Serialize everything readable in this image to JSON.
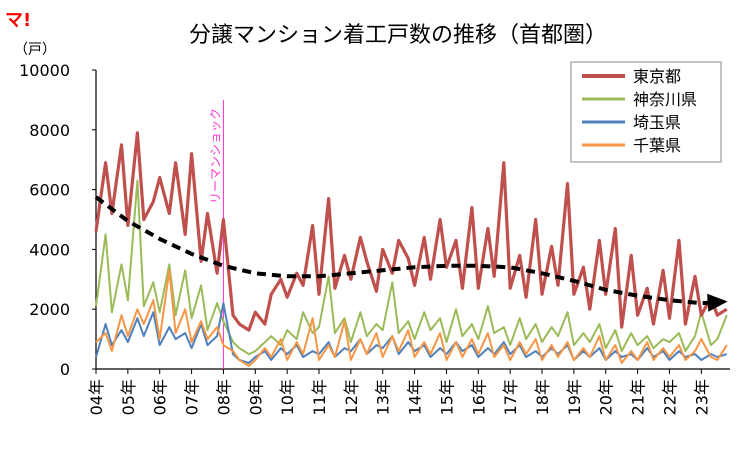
{
  "logo": "マ!",
  "chart_data": {
    "type": "line",
    "title": "分譲マンション着工戸数の推移（首都圏）",
    "ylabel": "（戸）",
    "ylim": [
      0,
      10000
    ],
    "yticks": [
      0,
      2000,
      4000,
      6000,
      8000,
      10000
    ],
    "xlim": [
      2004.0,
      2023.9
    ],
    "xticks": [
      {
        "x": 2004,
        "label": "04年"
      },
      {
        "x": 2005,
        "label": "05年"
      },
      {
        "x": 2006,
        "label": "06年"
      },
      {
        "x": 2007,
        "label": "07年"
      },
      {
        "x": 2008,
        "label": "08年"
      },
      {
        "x": 2009,
        "label": "09年"
      },
      {
        "x": 2010,
        "label": "10年"
      },
      {
        "x": 2011,
        "label": "11年"
      },
      {
        "x": 2012,
        "label": "12年"
      },
      {
        "x": 2013,
        "label": "13年"
      },
      {
        "x": 2014,
        "label": "14年"
      },
      {
        "x": 2015,
        "label": "15年"
      },
      {
        "x": 2016,
        "label": "16年"
      },
      {
        "x": 2017,
        "label": "17年"
      },
      {
        "x": 2018,
        "label": "18年"
      },
      {
        "x": 2019,
        "label": "19年"
      },
      {
        "x": 2020,
        "label": "20年"
      },
      {
        "x": 2021,
        "label": "21年"
      },
      {
        "x": 2022,
        "label": "22年"
      },
      {
        "x": 2023,
        "label": "23年"
      }
    ],
    "grid": false,
    "legend_position": "top-right",
    "annotation": {
      "label": "リーマンショック",
      "x": 2008.0,
      "color": "#ff33cc"
    },
    "series": [
      {
        "name": "東京都",
        "color": "#c0504d",
        "x": [
          2004.0,
          2004.3,
          2004.5,
          2004.8,
          2005.0,
          2005.3,
          2005.5,
          2005.8,
          2006.0,
          2006.3,
          2006.5,
          2006.8,
          2007.0,
          2007.3,
          2007.5,
          2007.8,
          2008.0,
          2008.3,
          2008.5,
          2008.8,
          2009.0,
          2009.3,
          2009.5,
          2009.8,
          2010.0,
          2010.3,
          2010.5,
          2010.8,
          2011.0,
          2011.3,
          2011.5,
          2011.8,
          2012.0,
          2012.3,
          2012.5,
          2012.8,
          2013.0,
          2013.3,
          2013.5,
          2013.8,
          2014.0,
          2014.3,
          2014.5,
          2014.8,
          2015.0,
          2015.3,
          2015.5,
          2015.8,
          2016.0,
          2016.3,
          2016.5,
          2016.8,
          2017.0,
          2017.3,
          2017.5,
          2017.8,
          2018.0,
          2018.3,
          2018.5,
          2018.8,
          2019.0,
          2019.3,
          2019.5,
          2019.8,
          2020.0,
          2020.3,
          2020.5,
          2020.8,
          2021.0,
          2021.3,
          2021.5,
          2021.8,
          2022.0,
          2022.3,
          2022.5,
          2022.8,
          2023.0,
          2023.3,
          2023.5,
          2023.8
        ],
        "values": [
          4600,
          6900,
          5200,
          7500,
          4800,
          7900,
          5000,
          5600,
          6400,
          5200,
          6900,
          4500,
          7200,
          3600,
          5200,
          3200,
          5000,
          1800,
          1500,
          1300,
          1900,
          1500,
          2500,
          3000,
          2400,
          3200,
          2800,
          4800,
          2500,
          5700,
          2700,
          3800,
          3000,
          4400,
          3600,
          2600,
          4000,
          3200,
          4300,
          3700,
          2800,
          4400,
          3000,
          5000,
          3400,
          4300,
          2700,
          5400,
          2700,
          4700,
          3100,
          6900,
          2700,
          3800,
          2400,
          5000,
          2500,
          4100,
          2800,
          6200,
          2500,
          3400,
          2000,
          4300,
          2500,
          4700,
          1400,
          3800,
          1800,
          2700,
          1500,
          3300,
          1700,
          4300,
          1500,
          3100,
          1800,
          2400,
          1800,
          2000
        ]
      },
      {
        "name": "神奈川県",
        "color": "#9bbb59",
        "x": [
          2004.0,
          2004.3,
          2004.5,
          2004.8,
          2005.0,
          2005.3,
          2005.5,
          2005.8,
          2006.0,
          2006.3,
          2006.5,
          2006.8,
          2007.0,
          2007.3,
          2007.5,
          2007.8,
          2008.0,
          2008.3,
          2008.5,
          2008.8,
          2009.0,
          2009.3,
          2009.5,
          2009.8,
          2010.0,
          2010.3,
          2010.5,
          2010.8,
          2011.0,
          2011.3,
          2011.5,
          2011.8,
          2012.0,
          2012.3,
          2012.5,
          2012.8,
          2013.0,
          2013.3,
          2013.5,
          2013.8,
          2014.0,
          2014.3,
          2014.5,
          2014.8,
          2015.0,
          2015.3,
          2015.5,
          2015.8,
          2016.0,
          2016.3,
          2016.5,
          2016.8,
          2017.0,
          2017.3,
          2017.5,
          2017.8,
          2018.0,
          2018.3,
          2018.5,
          2018.8,
          2019.0,
          2019.3,
          2019.5,
          2019.8,
          2020.0,
          2020.3,
          2020.5,
          2020.8,
          2021.0,
          2021.3,
          2021.5,
          2021.8,
          2022.0,
          2022.3,
          2022.5,
          2022.8,
          2023.0,
          2023.3,
          2023.5,
          2023.8
        ],
        "values": [
          2100,
          4500,
          1900,
          3500,
          2300,
          6300,
          2100,
          2900,
          1900,
          3500,
          1800,
          3300,
          1700,
          2800,
          1300,
          2200,
          1600,
          900,
          700,
          500,
          600,
          900,
          1100,
          800,
          1300,
          1000,
          1900,
          1200,
          1400,
          3100,
          1200,
          1700,
          900,
          1900,
          1100,
          1500,
          1300,
          2900,
          1200,
          1600,
          1000,
          1900,
          1300,
          1700,
          900,
          2000,
          1100,
          1500,
          1000,
          2100,
          1200,
          1400,
          800,
          1700,
          1000,
          1500,
          900,
          1400,
          1100,
          1900,
          800,
          1200,
          900,
          1500,
          700,
          1300,
          600,
          1200,
          800,
          1100,
          700,
          1000,
          900,
          1200,
          600,
          1100,
          1900,
          800,
          1000,
          1800
        ]
      },
      {
        "name": "埼玉県",
        "color": "#4f81bd",
        "x": [
          2004.0,
          2004.3,
          2004.5,
          2004.8,
          2005.0,
          2005.3,
          2005.5,
          2005.8,
          2006.0,
          2006.3,
          2006.5,
          2006.8,
          2007.0,
          2007.3,
          2007.5,
          2007.8,
          2008.0,
          2008.3,
          2008.5,
          2008.8,
          2009.0,
          2009.3,
          2009.5,
          2009.8,
          2010.0,
          2010.3,
          2010.5,
          2010.8,
          2011.0,
          2011.3,
          2011.5,
          2011.8,
          2012.0,
          2012.3,
          2012.5,
          2012.8,
          2013.0,
          2013.3,
          2013.5,
          2013.8,
          2014.0,
          2014.3,
          2014.5,
          2014.8,
          2015.0,
          2015.3,
          2015.5,
          2015.8,
          2016.0,
          2016.3,
          2016.5,
          2016.8,
          2017.0,
          2017.3,
          2017.5,
          2017.8,
          2018.0,
          2018.3,
          2018.5,
          2018.8,
          2019.0,
          2019.3,
          2019.5,
          2019.8,
          2020.0,
          2020.3,
          2020.5,
          2020.8,
          2021.0,
          2021.3,
          2021.5,
          2021.8,
          2022.0,
          2022.3,
          2022.5,
          2022.8,
          2023.0,
          2023.3,
          2023.5,
          2023.8
        ],
        "values": [
          400,
          1500,
          800,
          1300,
          900,
          1700,
          1100,
          1900,
          800,
          1400,
          1000,
          1200,
          700,
          1500,
          800,
          1100,
          2200,
          500,
          300,
          200,
          400,
          600,
          300,
          700,
          500,
          800,
          400,
          600,
          500,
          900,
          400,
          700,
          600,
          1000,
          500,
          800,
          700,
          1100,
          500,
          900,
          600,
          800,
          400,
          700,
          500,
          900,
          600,
          800,
          400,
          700,
          500,
          900,
          500,
          800,
          400,
          600,
          400,
          700,
          500,
          800,
          300,
          600,
          400,
          700,
          300,
          600,
          400,
          500,
          300,
          700,
          400,
          600,
          300,
          600,
          400,
          500,
          300,
          500,
          400,
          500
        ]
      },
      {
        "name": "千葉県",
        "color": "#f79646",
        "x": [
          2004.0,
          2004.3,
          2004.5,
          2004.8,
          2005.0,
          2005.3,
          2005.5,
          2005.8,
          2006.0,
          2006.3,
          2006.5,
          2006.8,
          2007.0,
          2007.3,
          2007.5,
          2007.8,
          2008.0,
          2008.3,
          2008.5,
          2008.8,
          2009.0,
          2009.3,
          2009.5,
          2009.8,
          2010.0,
          2010.3,
          2010.5,
          2010.8,
          2011.0,
          2011.3,
          2011.5,
          2011.8,
          2012.0,
          2012.3,
          2012.5,
          2012.8,
          2013.0,
          2013.3,
          2013.5,
          2013.8,
          2014.0,
          2014.3,
          2014.5,
          2014.8,
          2015.0,
          2015.3,
          2015.5,
          2015.8,
          2016.0,
          2016.3,
          2016.5,
          2016.8,
          2017.0,
          2017.3,
          2017.5,
          2017.8,
          2018.0,
          2018.3,
          2018.5,
          2018.8,
          2019.0,
          2019.3,
          2019.5,
          2019.8,
          2020.0,
          2020.3,
          2020.5,
          2020.8,
          2021.0,
          2021.3,
          2021.5,
          2021.8,
          2022.0,
          2022.3,
          2022.5,
          2022.8,
          2023.0,
          2023.3,
          2023.5,
          2023.8
        ],
        "values": [
          900,
          1200,
          600,
          1800,
          1100,
          2000,
          1500,
          2300,
          1000,
          3300,
          1200,
          2000,
          900,
          1600,
          1000,
          1400,
          800,
          600,
          300,
          100,
          300,
          700,
          400,
          1000,
          300,
          900,
          500,
          1700,
          300,
          800,
          400,
          1600,
          300,
          1000,
          500,
          1200,
          400,
          1100,
          600,
          1300,
          400,
          900,
          500,
          1200,
          300,
          900,
          400,
          1000,
          500,
          1200,
          400,
          800,
          300,
          900,
          500,
          1000,
          300,
          800,
          400,
          900,
          300,
          700,
          400,
          1100,
          300,
          800,
          200,
          600,
          300,
          900,
          300,
          700,
          400,
          800,
          300,
          600,
          1000,
          400,
          300,
          800
        ]
      },
      {
        "role": "trend",
        "color": "#000000",
        "x": [
          2004.0,
          2005.0,
          2006.0,
          2007.0,
          2008.0,
          2009.0,
          2010.0,
          2011.0,
          2012.0,
          2013.0,
          2014.0,
          2015.0,
          2016.0,
          2017.0,
          2018.0,
          2019.0,
          2020.0,
          2021.0,
          2022.0,
          2023.0,
          2023.7
        ],
        "values": [
          5750,
          4950,
          4350,
          3850,
          3450,
          3200,
          3100,
          3100,
          3200,
          3300,
          3400,
          3450,
          3450,
          3400,
          3200,
          2950,
          2650,
          2450,
          2300,
          2200,
          2250
        ]
      }
    ]
  }
}
